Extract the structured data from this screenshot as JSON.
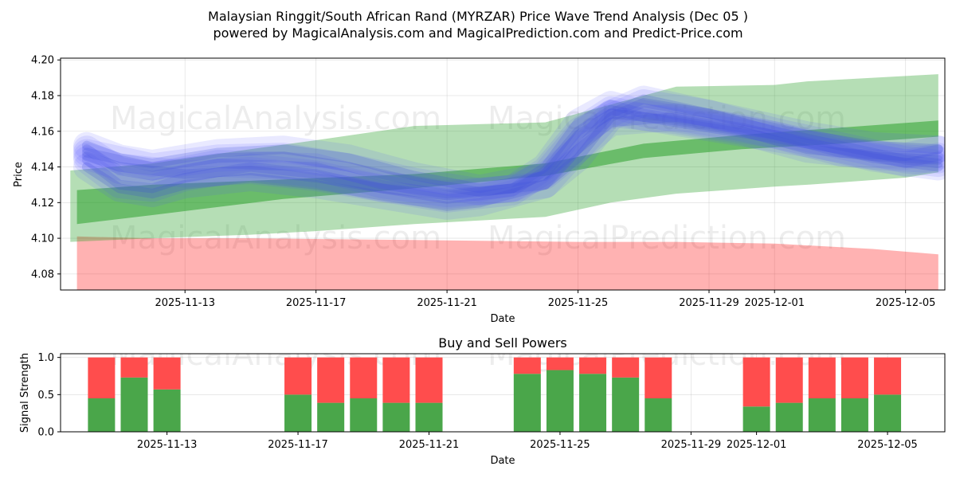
{
  "chart_data": [
    {
      "type": "area",
      "title": "Malaysian Ringgit/South African Rand (MYRZAR) Price Wave Trend Analysis (Dec 05 )",
      "subtitle": "powered by MagicalAnalysis.com and MagicalPrediction.com and Predict-Price.com",
      "xlabel": "Date",
      "ylabel": "Price",
      "ylim": [
        4.071,
        4.201
      ],
      "xlim": [
        "2025-11-09.2",
        "2025-12-06.2"
      ],
      "grid": true,
      "x_ticks": [
        "2025-11-13",
        "2025-11-17",
        "2025-11-21",
        "2025-11-25",
        "2025-11-29",
        "2025-12-01",
        "2025-12-05"
      ],
      "y_ticks": [
        "4.08",
        "4.10",
        "4.12",
        "4.14",
        "4.16",
        "4.18",
        "4.20"
      ],
      "watermarks": [
        "MagicalAnalysis.com",
        "MagicalPrediction.com"
      ],
      "bands": {
        "green_outer": {
          "color": "#2ca02c",
          "x": [
            9.5,
            12,
            15,
            17,
            20,
            24,
            26,
            28,
            31,
            32,
            35,
            36
          ],
          "upper": [
            4.138,
            4.142,
            4.15,
            4.155,
            4.163,
            4.165,
            4.175,
            4.185,
            4.186,
            4.188,
            4.191,
            4.192
          ],
          "lower": [
            4.098,
            4.1,
            4.102,
            4.104,
            4.108,
            4.112,
            4.12,
            4.125,
            4.129,
            4.13,
            4.134,
            4.137
          ]
        },
        "green_inner": {
          "color": "#2ca02c",
          "x": [
            9.7,
            12,
            16,
            20,
            24,
            27,
            30,
            33,
            36
          ],
          "upper": [
            4.127,
            4.13,
            4.133,
            4.136,
            4.142,
            4.153,
            4.158,
            4.162,
            4.166
          ],
          "lower": [
            4.108,
            4.113,
            4.122,
            4.128,
            4.135,
            4.145,
            4.15,
            4.153,
            4.157
          ]
        },
        "red": {
          "color": "#ff0000",
          "x": [
            9.7,
            12,
            15,
            20,
            25,
            28,
            31,
            34,
            36
          ],
          "upper": [
            4.101,
            4.1,
            4.1,
            4.099,
            4.098,
            4.098,
            4.097,
            4.094,
            4.091
          ],
          "lower": [
            4.071,
            4.071,
            4.071,
            4.071,
            4.071,
            4.071,
            4.071,
            4.071,
            4.071
          ]
        }
      },
      "wave_series": [
        {
          "name": "wave-1",
          "x": [
            10,
            11,
            12,
            14,
            17,
            19,
            21,
            23,
            24,
            25,
            26,
            27,
            29,
            31,
            33,
            35,
            36
          ],
          "y": [
            4.15,
            4.138,
            4.135,
            4.142,
            4.14,
            4.13,
            4.125,
            4.128,
            4.14,
            4.165,
            4.175,
            4.17,
            4.164,
            4.158,
            4.148,
            4.146,
            4.15
          ]
        },
        {
          "name": "wave-2",
          "x": [
            10,
            11,
            12,
            13,
            15,
            17,
            19,
            21,
            23,
            24,
            25,
            26,
            27,
            29,
            31,
            33,
            35,
            36
          ],
          "y": [
            4.144,
            4.13,
            4.128,
            4.134,
            4.14,
            4.136,
            4.128,
            4.122,
            4.126,
            4.138,
            4.16,
            4.172,
            4.168,
            4.162,
            4.156,
            4.15,
            4.142,
            4.146
          ]
        },
        {
          "name": "wave-3",
          "x": [
            10,
            11,
            12,
            14,
            16,
            18,
            20,
            22,
            24,
            25,
            26,
            27,
            28,
            30,
            32,
            34,
            36
          ],
          "y": [
            4.152,
            4.145,
            4.142,
            4.148,
            4.15,
            4.145,
            4.135,
            4.128,
            4.135,
            4.15,
            4.17,
            4.178,
            4.174,
            4.166,
            4.158,
            4.152,
            4.15
          ]
        },
        {
          "name": "wave-4",
          "x": [
            10,
            11,
            12,
            13,
            15,
            17,
            19,
            21,
            22,
            24,
            25,
            26,
            28,
            30,
            32,
            34,
            36
          ],
          "y": [
            4.14,
            4.128,
            4.125,
            4.13,
            4.134,
            4.13,
            4.124,
            4.118,
            4.12,
            4.13,
            4.15,
            4.165,
            4.168,
            4.162,
            4.154,
            4.145,
            4.14
          ]
        },
        {
          "name": "wave-5",
          "x": [
            10,
            12,
            14,
            16,
            18,
            20,
            22,
            24,
            25,
            26,
            27,
            29,
            31,
            33,
            35,
            36
          ],
          "y": [
            4.148,
            4.14,
            4.145,
            4.146,
            4.14,
            4.132,
            4.126,
            4.13,
            4.145,
            4.168,
            4.176,
            4.17,
            4.16,
            4.152,
            4.144,
            4.142
          ]
        },
        {
          "name": "wave-6",
          "x": [
            10,
            11,
            13,
            15,
            17,
            19,
            21,
            23,
            24,
            25,
            26,
            28,
            30,
            32,
            34,
            36
          ],
          "y": [
            4.146,
            4.14,
            4.136,
            4.138,
            4.134,
            4.128,
            4.124,
            4.128,
            4.136,
            4.158,
            4.17,
            4.166,
            4.16,
            4.15,
            4.146,
            4.144
          ]
        }
      ]
    },
    {
      "type": "bar",
      "title": "Buy and Sell Powers",
      "xlabel": "Date",
      "ylabel": "Signal Strength",
      "ylim": [
        0,
        1.05
      ],
      "y_ticks": [
        "0.0",
        "0.5",
        "1.0"
      ],
      "x_ticks": [
        "2025-11-13",
        "2025-11-17",
        "2025-11-21",
        "2025-11-25",
        "2025-11-29",
        "2025-12-01",
        "2025-12-05"
      ],
      "categories": [
        "2025-11-11",
        "2025-11-12",
        "2025-11-13",
        "2025-11-17",
        "2025-11-18",
        "2025-11-19",
        "2025-11-20",
        "2025-11-21",
        "2025-11-24",
        "2025-11-25",
        "2025-11-26",
        "2025-11-27",
        "2025-11-28",
        "2025-12-01",
        "2025-12-02",
        "2025-12-03",
        "2025-12-04",
        "2025-12-05"
      ],
      "series": [
        {
          "name": "Buy",
          "color": "#4aa64a",
          "values": [
            0.45,
            0.73,
            0.57,
            0.5,
            0.39,
            0.45,
            0.39,
            0.39,
            0.78,
            0.83,
            0.78,
            0.73,
            0.45,
            0.34,
            0.39,
            0.45,
            0.45,
            0.5
          ]
        },
        {
          "name": "Sell",
          "color": "#ff4d4d",
          "values": [
            0.55,
            0.27,
            0.43,
            0.5,
            0.61,
            0.55,
            0.61,
            0.61,
            0.22,
            0.17,
            0.22,
            0.27,
            0.55,
            0.66,
            0.61,
            0.55,
            0.55,
            0.5
          ]
        }
      ],
      "watermarks": [
        "MagicalAnalysis.com",
        "MagicalPrediction.com"
      ]
    }
  ]
}
